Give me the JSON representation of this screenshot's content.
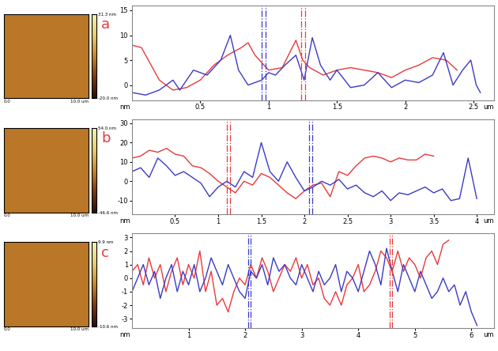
{
  "chart_data": [
    {
      "type": "line",
      "label": "a",
      "xlabel": "um",
      "ylabel": "nm",
      "xlim": [
        0,
        2.65
      ],
      "ylim": [
        -3,
        16
      ],
      "xticks": [
        0.5,
        1,
        1.5,
        2,
        2.5
      ],
      "yticks": [
        0,
        5,
        10,
        15
      ],
      "series": [
        {
          "color": "#e8393a",
          "line_style": "solid",
          "x": [
            0.0,
            0.07,
            0.12,
            0.2,
            0.3,
            0.4,
            0.5,
            0.6,
            0.7,
            0.8,
            0.85,
            0.9,
            1.0,
            1.1,
            1.2,
            1.25,
            1.3,
            1.4,
            1.5,
            1.6,
            1.7,
            1.8,
            1.9,
            2.0,
            2.1,
            2.2,
            2.3,
            2.38
          ],
          "values": [
            8,
            7.5,
            5,
            1,
            -1,
            -0.5,
            1,
            4,
            6,
            7.5,
            8.5,
            6,
            3,
            3.5,
            9,
            5,
            3.5,
            2,
            3,
            3.5,
            3,
            2.5,
            1.5,
            3,
            4,
            5.5,
            5,
            3
          ]
        },
        {
          "color": "#3a3ac8",
          "line_style": "solid",
          "x": [
            0,
            0.1,
            0.2,
            0.3,
            0.35,
            0.45,
            0.55,
            0.65,
            0.72,
            0.78,
            0.85,
            0.95,
            1.0,
            1.05,
            1.12,
            1.2,
            1.26,
            1.32,
            1.38,
            1.45,
            1.5,
            1.6,
            1.7,
            1.8,
            1.9,
            2.0,
            2.1,
            2.2,
            2.28,
            2.35,
            2.42,
            2.48,
            2.52,
            2.55
          ],
          "values": [
            -1.5,
            -2,
            -1,
            1,
            -1,
            3,
            2,
            5,
            10,
            3,
            0,
            1,
            2.5,
            2,
            4,
            6,
            1,
            9.5,
            4,
            1,
            3,
            -0.5,
            0,
            2.5,
            -0.5,
            1,
            0.5,
            2,
            6.5,
            0,
            3,
            5,
            0,
            -1.5
          ]
        }
      ],
      "cursors": [
        {
          "color": "#3a3ac8",
          "line_style": "dashdot",
          "x": [
            0.95,
            0.98
          ]
        },
        {
          "color": "#e8393a",
          "line_style": "dashdot",
          "x": [
            1.24,
            1.27
          ]
        }
      ],
      "image": {
        "cbar_lim": [
          -20.0,
          31.3
        ],
        "cbar_ticks": [
          {
            "value": 31.3,
            "label": "31.3 nm"
          },
          {
            "value": -20.0,
            "label": "-20.0 nm"
          }
        ],
        "xlim": [
          0,
          10
        ],
        "xticks": [
          {
            "value": 0,
            "label": "0.0"
          },
          {
            "value": 10,
            "label": "10.0 um"
          }
        ]
      }
    },
    {
      "type": "line",
      "label": "b",
      "xlabel": "um",
      "ylabel": "nm",
      "xlim": [
        0,
        4.2
      ],
      "ylim": [
        -17,
        32
      ],
      "xticks": [
        0.5,
        1,
        1.5,
        2,
        2.5,
        3,
        3.5,
        4
      ],
      "yticks": [
        -10,
        0,
        10,
        20,
        30
      ],
      "series": [
        {
          "color": "#e8393a",
          "line_style": "solid",
          "x": [
            0.0,
            0.1,
            0.2,
            0.3,
            0.4,
            0.5,
            0.6,
            0.7,
            0.8,
            0.9,
            1.0,
            1.1,
            1.2,
            1.3,
            1.4,
            1.5,
            1.6,
            1.7,
            1.8,
            1.9,
            2.0,
            2.1,
            2.2,
            2.3,
            2.4,
            2.5,
            2.6,
            2.7,
            2.8,
            2.9,
            3.0,
            3.1,
            3.2,
            3.3,
            3.4,
            3.5
          ],
          "values": [
            12,
            13,
            16,
            15,
            17,
            14,
            13,
            8,
            7,
            4,
            0,
            -3,
            -6,
            0,
            -2,
            4,
            2,
            -2,
            -6,
            -9,
            -5,
            -2,
            -1,
            -8,
            5,
            3,
            8,
            12,
            13,
            12,
            10,
            12,
            11,
            11,
            14,
            13
          ]
        },
        {
          "color": "#3a3ac8",
          "line_style": "solid",
          "x": [
            0.0,
            0.1,
            0.2,
            0.3,
            0.4,
            0.5,
            0.6,
            0.7,
            0.8,
            0.9,
            1.0,
            1.1,
            1.2,
            1.3,
            1.4,
            1.5,
            1.6,
            1.7,
            1.8,
            1.9,
            2.0,
            2.1,
            2.2,
            2.3,
            2.4,
            2.5,
            2.6,
            2.7,
            2.8,
            2.9,
            3.0,
            3.1,
            3.2,
            3.3,
            3.4,
            3.5,
            3.6,
            3.7,
            3.8,
            3.9,
            4.0
          ],
          "values": [
            5,
            7,
            2,
            12,
            8,
            3,
            5,
            2,
            -1,
            -8,
            -3,
            0,
            -3,
            5,
            2,
            20,
            5,
            0,
            10,
            2,
            -5,
            -3,
            0,
            -2,
            1,
            -4,
            -2,
            -6,
            -8,
            -5,
            -10,
            -6,
            -7,
            -5,
            -3,
            -6,
            -4,
            -10,
            -9,
            12,
            -9
          ]
        }
      ],
      "cursors": [
        {
          "color": "#e8393a",
          "line_style": "dashdot",
          "x": [
            1.1,
            1.14
          ]
        },
        {
          "color": "#3a3ac8",
          "line_style": "dashdot",
          "x": [
            2.05,
            2.09
          ]
        }
      ],
      "image": {
        "cbar_lim": [
          -46.6,
          54.0
        ],
        "cbar_ticks": [
          {
            "value": 54.0,
            "label": "54.0 nm"
          },
          {
            "value": -46.6,
            "label": "-46.6 nm"
          }
        ],
        "xlim": [
          0,
          10
        ],
        "xticks": [
          {
            "value": 0,
            "label": "0.0"
          },
          {
            "value": 10,
            "label": "10.0 um"
          }
        ]
      }
    },
    {
      "type": "line",
      "label": "c",
      "xlabel": "um",
      "ylabel": "nm",
      "xlim": [
        0,
        6.4
      ],
      "ylim": [
        -3.7,
        3.3
      ],
      "xticks": [
        1,
        2,
        3,
        4,
        5,
        6
      ],
      "yticks": [
        -3,
        -2,
        -1,
        0,
        1,
        2,
        3
      ],
      "series": [
        {
          "color": "#e8393a",
          "line_style": "solid",
          "x": [
            0.0,
            0.1,
            0.2,
            0.3,
            0.4,
            0.5,
            0.6,
            0.7,
            0.8,
            0.9,
            1.0,
            1.1,
            1.2,
            1.3,
            1.4,
            1.5,
            1.6,
            1.7,
            1.8,
            1.9,
            2.0,
            2.1,
            2.2,
            2.3,
            2.4,
            2.5,
            2.6,
            2.7,
            2.8,
            2.9,
            3.0,
            3.1,
            3.2,
            3.3,
            3.4,
            3.5,
            3.6,
            3.7,
            3.8,
            3.9,
            4.0,
            4.1,
            4.2,
            4.3,
            4.4,
            4.5,
            4.6,
            4.7,
            4.8,
            4.9,
            5.0,
            5.1,
            5.2,
            5.3,
            5.4,
            5.5,
            5.6
          ],
          "values": [
            0.5,
            1,
            -0.5,
            1.5,
            0,
            1,
            -1,
            0.5,
            1.5,
            -0.5,
            1,
            0,
            2,
            -1,
            0.5,
            -2,
            -1.5,
            -2.5,
            -1,
            0,
            -0.5,
            1,
            0,
            1.5,
            0.5,
            -1,
            0,
            1,
            0.5,
            1.5,
            0,
            1,
            -0.5,
            0,
            -1.5,
            -2,
            -1,
            -2,
            -0.5,
            0,
            1,
            -1,
            -0.5,
            0.5,
            2,
            1.5,
            0.5,
            2,
            0.5,
            1.5,
            1,
            0,
            1.5,
            2,
            1,
            2.5,
            2.8
          ]
        },
        {
          "color": "#3a3ac8",
          "line_style": "solid",
          "x": [
            0.0,
            0.1,
            0.2,
            0.3,
            0.4,
            0.5,
            0.6,
            0.7,
            0.8,
            0.9,
            1.0,
            1.1,
            1.2,
            1.3,
            1.4,
            1.5,
            1.6,
            1.7,
            1.8,
            1.9,
            2.0,
            2.1,
            2.2,
            2.3,
            2.4,
            2.5,
            2.6,
            2.7,
            2.8,
            2.9,
            3.0,
            3.1,
            3.2,
            3.3,
            3.4,
            3.5,
            3.6,
            3.7,
            3.8,
            3.9,
            4.0,
            4.1,
            4.2,
            4.3,
            4.4,
            4.5,
            4.6,
            4.7,
            4.8,
            4.9,
            5.0,
            5.1,
            5.2,
            5.3,
            5.4,
            5.5,
            5.6,
            5.7,
            5.8,
            5.9,
            6.0,
            6.1
          ],
          "values": [
            -1,
            0,
            1,
            -0.5,
            0.5,
            -1.5,
            0,
            1,
            -1,
            0.5,
            -0.5,
            1,
            -1,
            0,
            1.5,
            0.5,
            -0.5,
            1,
            0,
            -1,
            -1.5,
            0.5,
            0,
            1,
            -0.5,
            1.5,
            0.5,
            1,
            0,
            -0.5,
            1,
            0,
            -1,
            0.5,
            -0.5,
            0,
            1,
            -1,
            0.5,
            0,
            -1,
            0.5,
            2,
            1,
            -0.5,
            2.2,
            0.5,
            -1,
            1,
            0,
            -1,
            0.5,
            -0.5,
            -1.5,
            -1,
            0,
            -1,
            -0.5,
            -2,
            -1,
            -2.5,
            -3.5
          ]
        }
      ],
      "cursors": [
        {
          "color": "#3a3ac8",
          "line_style": "dashdot",
          "x": [
            2.05,
            2.1
          ]
        },
        {
          "color": "#e8393a",
          "line_style": "dashdot",
          "x": [
            4.55,
            4.6
          ]
        }
      ],
      "image": {
        "cbar_lim": [
          -10.6,
          9.9
        ],
        "cbar_ticks": [
          {
            "value": 9.9,
            "label": "9.9 nm"
          },
          {
            "value": -10.6,
            "label": "-10.6 nm"
          }
        ],
        "xlim": [
          0,
          10
        ],
        "xticks": [
          {
            "value": 0,
            "label": "0.0"
          },
          {
            "value": 10,
            "label": "10.0 um"
          }
        ]
      }
    }
  ]
}
